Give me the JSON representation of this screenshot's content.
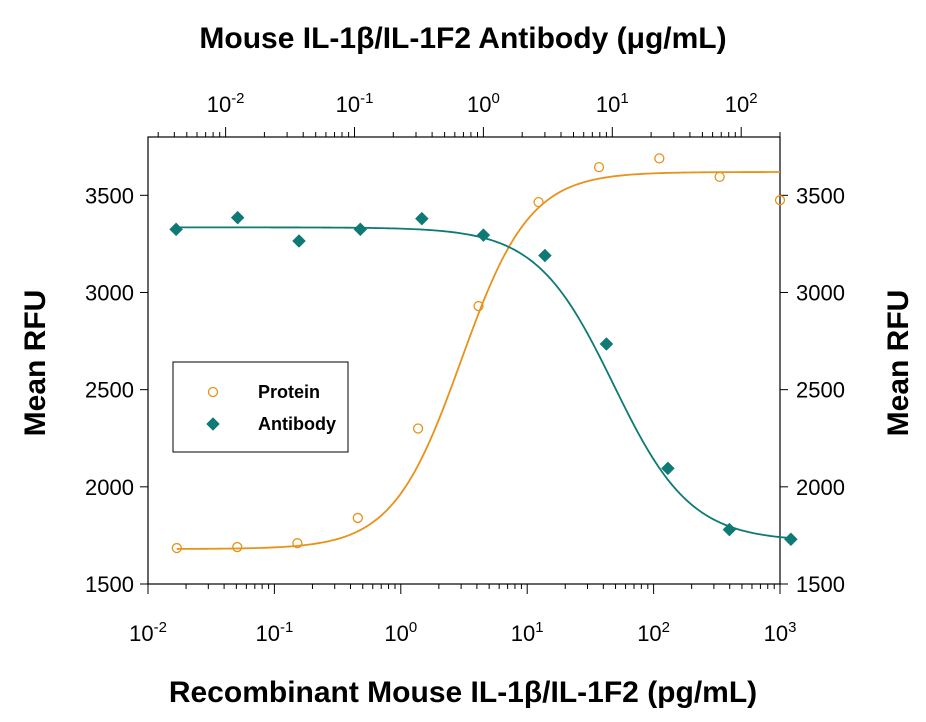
{
  "chart_data": {
    "type": "scatter",
    "title": "Mouse IL-1β/IL-1F2 Antibody (μg/mL)",
    "xlabel": "Recombinant Mouse IL-1β/IL-1F2 (pg/mL)",
    "ylabel_left": "Mean RFU",
    "ylabel_right": "Mean RFU",
    "x_scale": "log",
    "x_top_scale": "log",
    "xlim": [
      0.01,
      1000
    ],
    "x_top_lim": [
      0.0025,
      200
    ],
    "ylim": [
      1500,
      3800
    ],
    "x_ticks": [
      0.01,
      0.1,
      1,
      10,
      100,
      1000
    ],
    "x_tick_labels": [
      {
        "base": "10",
        "exp": "-2"
      },
      {
        "base": "10",
        "exp": "-1"
      },
      {
        "base": "10",
        "exp": "0"
      },
      {
        "base": "10",
        "exp": "1"
      },
      {
        "base": "10",
        "exp": "2"
      },
      {
        "base": "10",
        "exp": "3"
      }
    ],
    "x_top_ticks": [
      0.01,
      0.1,
      1,
      10,
      100
    ],
    "x_top_tick_labels": [
      {
        "base": "10",
        "exp": "-2"
      },
      {
        "base": "10",
        "exp": "-1"
      },
      {
        "base": "10",
        "exp": "0"
      },
      {
        "base": "10",
        "exp": "1"
      },
      {
        "base": "10",
        "exp": "2"
      }
    ],
    "y_ticks": [
      1500,
      2000,
      2500,
      3000,
      3500
    ],
    "grid": false,
    "legend_position": "middle-left",
    "series": [
      {
        "name": "Protein",
        "marker": "open-circle",
        "color": "#E8921A",
        "axis": "bottom",
        "x": [
          0.0169,
          0.0508,
          0.152,
          0.457,
          1.37,
          4.12,
          12.3,
          37.0,
          111,
          333,
          1000
        ],
        "y": [
          1685,
          1690,
          1710,
          1840,
          2300,
          2930,
          3465,
          3645,
          3690,
          3595,
          3475
        ],
        "fit": {
          "bottom": 1680,
          "top": 3620,
          "ec50": 3.0,
          "hill": 1.6
        }
      },
      {
        "name": "Antibody",
        "marker": "filled-diamond",
        "color": "#0F7A75",
        "axis": "top",
        "x": [
          0.00413,
          0.0124,
          0.0371,
          0.111,
          0.333,
          1.0,
          3.0,
          9.0,
          27.0,
          81.0,
          243
        ],
        "y": [
          3325,
          3385,
          3265,
          3325,
          3380,
          3295,
          3190,
          2735,
          2095,
          1780,
          1730
        ],
        "fit": {
          "bottom": 1720,
          "top": 3335,
          "ec50": 10.2,
          "hill": 1.45
        }
      }
    ]
  }
}
